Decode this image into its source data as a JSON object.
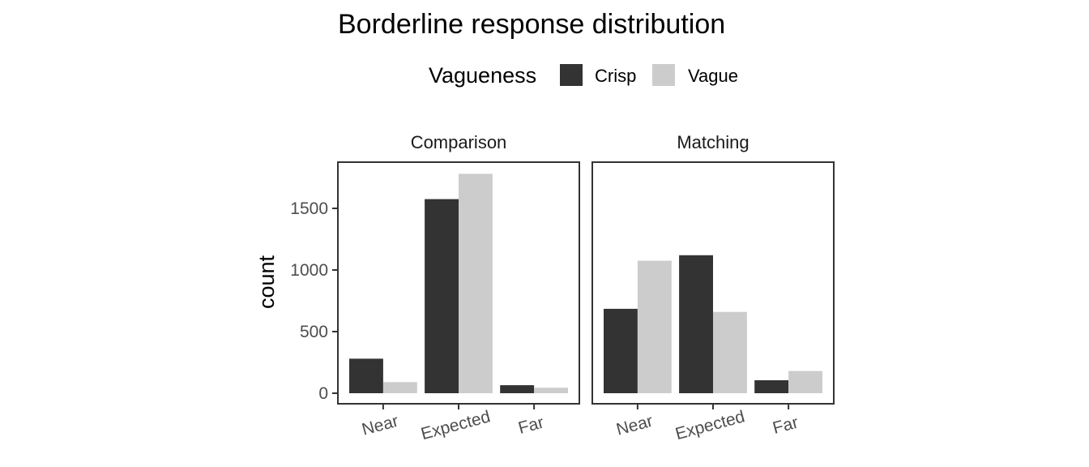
{
  "chart_data": {
    "type": "bar",
    "title": "Borderline response distribution",
    "ylabel": "count",
    "xlabel": "",
    "ylim": [
      0,
      1850
    ],
    "yticks": [
      0,
      500,
      1000,
      1500
    ],
    "categories": [
      "Near",
      "Expected",
      "Far"
    ],
    "legend": {
      "title": "Vagueness",
      "position": "top",
      "entries": [
        "Crisp",
        "Vague"
      ]
    },
    "colors": {
      "Crisp": "#333333",
      "Vague": "#cccccc"
    },
    "grid": false,
    "facets": [
      {
        "label": "Comparison",
        "series": [
          {
            "name": "Crisp",
            "values": [
              280,
              1575,
              65
            ]
          },
          {
            "name": "Vague",
            "values": [
              90,
              1780,
              45
            ]
          }
        ]
      },
      {
        "label": "Matching",
        "series": [
          {
            "name": "Crisp",
            "values": [
              685,
              1120,
              105
            ]
          },
          {
            "name": "Vague",
            "values": [
              1075,
              660,
              180
            ]
          }
        ]
      }
    ]
  }
}
